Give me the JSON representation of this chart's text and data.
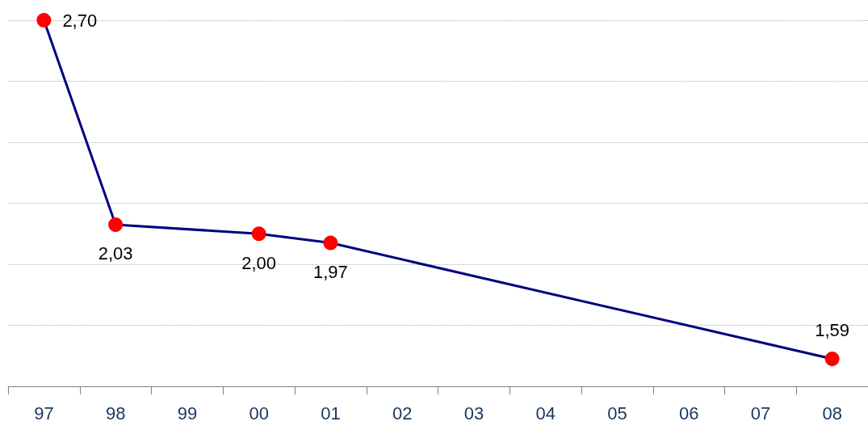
{
  "chart_data": {
    "type": "line",
    "categories": [
      "97",
      "98",
      "99",
      "00",
      "01",
      "02",
      "03",
      "04",
      "05",
      "06",
      "07",
      "08"
    ],
    "series": [
      {
        "color": "#000080",
        "colors": [
          "#ff0000",
          "#ff0000",
          null,
          "#ff0000",
          "#ff0000",
          null,
          null,
          null,
          null,
          null,
          null,
          "#ff0000"
        ],
        "values": [
          2.7,
          2.03,
          null,
          2.0,
          1.97,
          null,
          null,
          null,
          null,
          null,
          null,
          1.59
        ],
        "value_labels": [
          "2,70",
          "2,03",
          null,
          "2,00",
          "1,97",
          null,
          null,
          null,
          null,
          null,
          null,
          "1,59"
        ]
      }
    ],
    "ylim": [
      1.5,
      2.7
    ],
    "yticks": [
      {
        "value": 1.5,
        "label": null
      },
      {
        "value": 1.7,
        "label": null
      },
      {
        "value": 1.9,
        "label": null
      },
      {
        "value": 2.1,
        "label": null
      },
      {
        "value": 2.3,
        "label": null
      },
      {
        "value": 2.5,
        "label": null
      },
      {
        "value": 2.7,
        "label": null
      }
    ],
    "tick_labels": "x",
    "grid": "y",
    "marker": "circle",
    "line_style": "solid"
  }
}
